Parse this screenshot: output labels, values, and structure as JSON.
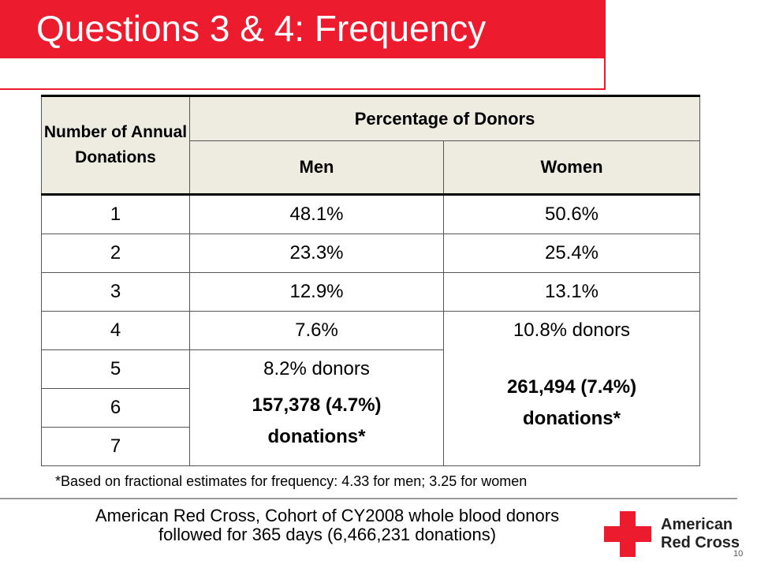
{
  "slide": {
    "title": "Questions 3 & 4: Frequency",
    "page_number": "10",
    "accent_color": "#ed1b2e"
  },
  "table": {
    "header_col1": "Number of Annual Donations",
    "header_group": "Percentage of Donors",
    "header_men": "Men",
    "header_women": "Women",
    "rows": [
      {
        "n": "1",
        "men": "48.1%",
        "women": "50.6%"
      },
      {
        "n": "2",
        "men": "23.3%",
        "women": "25.4%"
      },
      {
        "n": "3",
        "men": "12.9%",
        "women": "13.1%"
      },
      {
        "n": "4",
        "men": "7.6%"
      },
      {
        "n": "5"
      },
      {
        "n": "6"
      },
      {
        "n": "7"
      }
    ],
    "men_merged": {
      "donors": "8.2% donors",
      "donations_line1": "157,378 (4.7%)",
      "donations_line2": "donations*"
    },
    "women_merged": {
      "donors": "10.8% donors",
      "donations_line1": "261,494 (7.4%)",
      "donations_line2": "donations*"
    }
  },
  "footnote": "*Based on fractional estimates for frequency: 4.33 for men; 3.25 for women",
  "source": {
    "line1": "American Red Cross, Cohort of CY2008 whole blood donors",
    "line2": "followed for 365 days (6,466,231 donations)"
  },
  "logo": {
    "line1": "American",
    "line2": "Red Cross",
    "icon": "red-cross-icon"
  }
}
